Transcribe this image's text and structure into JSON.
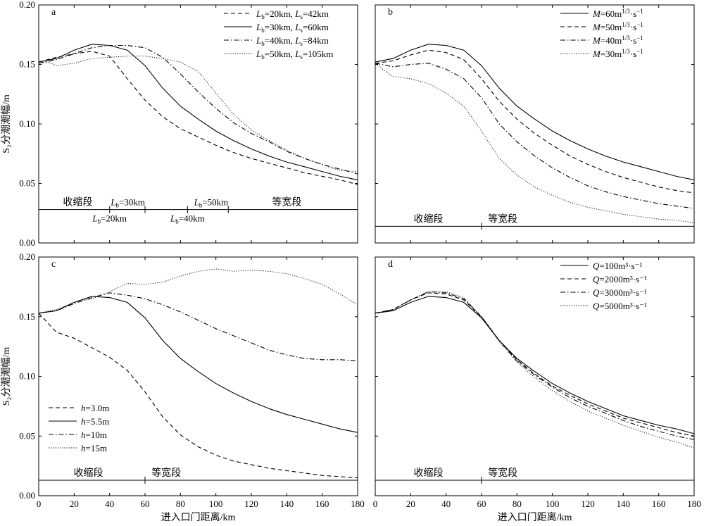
{
  "chart_data": [
    {
      "type": "line",
      "panel_label": "a",
      "xlabel": "",
      "ylabel": "S₂分潮潮幅/m",
      "xlim": [
        0,
        180
      ],
      "ylim": [
        0,
        0.2
      ],
      "x_ticks": [],
      "y_ticks": [
        "0.00",
        "0.05",
        "0.10",
        "0.15",
        "0.20"
      ],
      "legend_position": "top-right",
      "series": [
        {
          "name": "Lb=20km, Ls=42km",
          "label_parts": [
            [
              "Lb",
              "=20km, "
            ],
            [
              "Ls",
              "=42km"
            ]
          ],
          "style": "dashed",
          "x": [
            0,
            5,
            10,
            20,
            30,
            40,
            50,
            60,
            70,
            80,
            90,
            100,
            110,
            120,
            130,
            140,
            150,
            160,
            170,
            180
          ],
          "y": [
            0.152,
            0.154,
            0.156,
            0.159,
            0.161,
            0.157,
            0.138,
            0.12,
            0.106,
            0.096,
            0.089,
            0.082,
            0.076,
            0.071,
            0.067,
            0.063,
            0.059,
            0.056,
            0.053,
            0.049
          ]
        },
        {
          "name": "Lb=30km, Ls=60km",
          "label_parts": [
            [
              "Lb",
              "=30km, "
            ],
            [
              "Ls",
              "=60km"
            ]
          ],
          "style": "solid",
          "x": [
            0,
            10,
            20,
            30,
            40,
            50,
            60,
            70,
            80,
            90,
            100,
            110,
            120,
            130,
            140,
            150,
            160,
            170,
            180
          ],
          "y": [
            0.152,
            0.155,
            0.162,
            0.167,
            0.166,
            0.162,
            0.149,
            0.13,
            0.115,
            0.104,
            0.094,
            0.086,
            0.079,
            0.073,
            0.068,
            0.064,
            0.06,
            0.056,
            0.053
          ]
        },
        {
          "name": "Lb=40km, Ls=84km",
          "label_parts": [
            [
              "Lb",
              "=40km, "
            ],
            [
              "Ls",
              "=84km"
            ]
          ],
          "style": "dashdot",
          "x": [
            0,
            10,
            20,
            30,
            40,
            50,
            60,
            70,
            80,
            90,
            100,
            110,
            120,
            130,
            140,
            150,
            160,
            170,
            180
          ],
          "y": [
            0.151,
            0.154,
            0.159,
            0.164,
            0.166,
            0.166,
            0.164,
            0.156,
            0.142,
            0.127,
            0.113,
            0.101,
            0.092,
            0.085,
            0.077,
            0.071,
            0.066,
            0.062,
            0.058
          ]
        },
        {
          "name": "Lb=50km, Ls=105km",
          "label_parts": [
            [
              "Lb",
              "=50km, "
            ],
            [
              "Ls",
              "=105km"
            ]
          ],
          "style": "dotted",
          "x": [
            0,
            5,
            10,
            20,
            30,
            40,
            50,
            60,
            70,
            80,
            90,
            100,
            110,
            120,
            130,
            140,
            150,
            160,
            165,
            170,
            180
          ],
          "y": [
            0.151,
            0.152,
            0.149,
            0.151,
            0.155,
            0.156,
            0.157,
            0.157,
            0.155,
            0.152,
            0.144,
            0.126,
            0.108,
            0.095,
            0.086,
            0.078,
            0.071,
            0.066,
            0.063,
            0.061,
            0.06
          ]
        }
      ],
      "zones": {
        "y": 0.028,
        "contraction_label": "收缩段",
        "contraction_label_x": 22,
        "equal_width_label": "等宽段",
        "equal_width_label_x": 140,
        "markers": [
          {
            "x": 40,
            "label": "Lb=20km",
            "parts": [
              [
                "Lb",
                "=20km"
              ]
            ],
            "side": "below"
          },
          {
            "x": 60,
            "label": "Lb=30km",
            "parts": [
              [
                "Lb",
                "=30km"
              ]
            ],
            "side": "above"
          },
          {
            "x": 84,
            "label": "Lb=40km",
            "parts": [
              [
                "Lb",
                "=40km"
              ]
            ],
            "side": "below"
          },
          {
            "x": 107,
            "label": "Lb=50km",
            "parts": [
              [
                "Lb",
                "=50km"
              ]
            ],
            "side": "above"
          }
        ]
      }
    },
    {
      "type": "line",
      "panel_label": "b",
      "xlabel": "",
      "ylabel": "",
      "xlim": [
        0,
        180
      ],
      "ylim": [
        0,
        0.2
      ],
      "x_ticks": [],
      "y_ticks": [],
      "legend_position": "top-right",
      "series": [
        {
          "name": "M=60m1/3·s−1",
          "label_parts": [
            [
              "M",
              "=60m"
            ],
            [
              "1/3",
              "·s"
            ],
            [
              "−1",
              ""
            ]
          ],
          "style": "solid",
          "x": [
            0,
            10,
            20,
            30,
            40,
            50,
            60,
            70,
            80,
            90,
            100,
            110,
            120,
            130,
            140,
            150,
            160,
            170,
            180
          ],
          "y": [
            0.152,
            0.155,
            0.162,
            0.167,
            0.166,
            0.162,
            0.149,
            0.13,
            0.115,
            0.104,
            0.094,
            0.086,
            0.079,
            0.073,
            0.068,
            0.064,
            0.06,
            0.056,
            0.053
          ]
        },
        {
          "name": "M=50m1/3·s−1",
          "label_parts": [
            [
              "M",
              "=50m"
            ],
            [
              "1/3",
              "·s"
            ],
            [
              "−1",
              ""
            ]
          ],
          "style": "dashed",
          "x": [
            0,
            10,
            20,
            30,
            40,
            50,
            60,
            70,
            80,
            90,
            100,
            110,
            120,
            130,
            140,
            150,
            160,
            170,
            180
          ],
          "y": [
            0.151,
            0.153,
            0.158,
            0.162,
            0.16,
            0.154,
            0.138,
            0.119,
            0.104,
            0.092,
            0.082,
            0.073,
            0.066,
            0.06,
            0.055,
            0.051,
            0.047,
            0.044,
            0.042
          ]
        },
        {
          "name": "M=40m1/3·s−1",
          "label_parts": [
            [
              "M",
              "=40m"
            ],
            [
              "1/3",
              "·s"
            ],
            [
              "−1",
              ""
            ]
          ],
          "style": "dashdot",
          "x": [
            0,
            10,
            20,
            30,
            40,
            50,
            60,
            70,
            80,
            90,
            100,
            110,
            120,
            130,
            140,
            150,
            160,
            170,
            180
          ],
          "y": [
            0.151,
            0.148,
            0.15,
            0.151,
            0.146,
            0.138,
            0.122,
            0.1,
            0.085,
            0.073,
            0.063,
            0.055,
            0.048,
            0.043,
            0.039,
            0.036,
            0.033,
            0.031,
            0.029
          ]
        },
        {
          "name": "M=30m1/3·s−1",
          "label_parts": [
            [
              "M",
              "=30m"
            ],
            [
              "1/3",
              "·s"
            ],
            [
              "−1",
              ""
            ]
          ],
          "style": "dotted",
          "x": [
            0,
            5,
            10,
            20,
            30,
            40,
            50,
            60,
            70,
            80,
            90,
            100,
            110,
            120,
            130,
            140,
            150,
            160,
            170,
            180
          ],
          "y": [
            0.151,
            0.145,
            0.14,
            0.138,
            0.134,
            0.126,
            0.115,
            0.094,
            0.071,
            0.057,
            0.047,
            0.04,
            0.034,
            0.03,
            0.027,
            0.024,
            0.022,
            0.02,
            0.019,
            0.017
          ]
        }
      ],
      "zones": {
        "y": 0.014,
        "contraction_label": "收缩段",
        "contraction_label_x": 30,
        "equal_width_label": "等宽段",
        "equal_width_label_x": 72,
        "markers": [
          {
            "x": 60,
            "label": "",
            "parts": [],
            "side": "none"
          }
        ]
      }
    },
    {
      "type": "line",
      "panel_label": "c",
      "xlabel": "进入口门距离/km",
      "ylabel": "S₂分潮潮幅/m",
      "xlim": [
        0,
        180
      ],
      "ylim": [
        0,
        0.2
      ],
      "x_ticks": [
        "0",
        "20",
        "40",
        "60",
        "80",
        "100",
        "120",
        "140",
        "160",
        "180"
      ],
      "y_ticks": [
        "0.00",
        "0.05",
        "0.10",
        "0.15",
        "0.20"
      ],
      "legend_position": "bottom-left",
      "series": [
        {
          "name": "h=3.0m",
          "label_parts": [
            [
              "h",
              "=3.0m"
            ]
          ],
          "style": "dashed",
          "x": [
            0,
            10,
            20,
            30,
            40,
            50,
            60,
            70,
            80,
            90,
            100,
            110,
            120,
            130,
            140,
            150,
            160,
            170,
            180
          ],
          "y": [
            0.153,
            0.137,
            0.132,
            0.124,
            0.116,
            0.105,
            0.087,
            0.066,
            0.051,
            0.041,
            0.034,
            0.029,
            0.026,
            0.023,
            0.021,
            0.019,
            0.017,
            0.016,
            0.015
          ]
        },
        {
          "name": "h=5.5m",
          "label_parts": [
            [
              "h",
              "=5.5m"
            ]
          ],
          "style": "solid",
          "x": [
            0,
            10,
            20,
            30,
            40,
            50,
            60,
            70,
            80,
            90,
            100,
            110,
            120,
            130,
            140,
            150,
            160,
            170,
            180
          ],
          "y": [
            0.153,
            0.155,
            0.162,
            0.167,
            0.166,
            0.162,
            0.149,
            0.13,
            0.115,
            0.104,
            0.094,
            0.086,
            0.079,
            0.073,
            0.068,
            0.064,
            0.06,
            0.056,
            0.053
          ]
        },
        {
          "name": "h=10m",
          "label_parts": [
            [
              "h",
              "=10m"
            ]
          ],
          "style": "dashdot",
          "x": [
            0,
            10,
            20,
            30,
            40,
            50,
            60,
            70,
            80,
            90,
            100,
            110,
            120,
            130,
            140,
            150,
            160,
            170,
            180
          ],
          "y": [
            0.153,
            0.155,
            0.161,
            0.166,
            0.17,
            0.168,
            0.165,
            0.16,
            0.154,
            0.147,
            0.14,
            0.134,
            0.128,
            0.122,
            0.118,
            0.115,
            0.114,
            0.114,
            0.113
          ]
        },
        {
          "name": "h=15m",
          "label_parts": [
            [
              "h",
              "=15m"
            ]
          ],
          "style": "dotted",
          "x": [
            0,
            10,
            20,
            30,
            40,
            50,
            60,
            70,
            80,
            90,
            100,
            110,
            120,
            130,
            140,
            150,
            160,
            170,
            180
          ],
          "y": [
            0.153,
            0.156,
            0.162,
            0.165,
            0.171,
            0.178,
            0.177,
            0.179,
            0.184,
            0.188,
            0.19,
            0.188,
            0.189,
            0.188,
            0.186,
            0.182,
            0.177,
            0.169,
            0.16
          ]
        }
      ],
      "zones": {
        "y": 0.013,
        "contraction_label": "收缩段",
        "contraction_label_x": 28,
        "equal_width_label": "等宽段",
        "equal_width_label_x": 72,
        "markers": [
          {
            "x": 60,
            "label": "",
            "parts": [],
            "side": "none"
          }
        ]
      }
    },
    {
      "type": "line",
      "panel_label": "d",
      "xlabel": "进入口门距离/km",
      "ylabel": "",
      "xlim": [
        0,
        180
      ],
      "ylim": [
        0,
        0.2
      ],
      "x_ticks": [
        "0",
        "20",
        "40",
        "60",
        "80",
        "100",
        "120",
        "140",
        "160",
        "180"
      ],
      "y_ticks": [],
      "legend_position": "top-right",
      "series": [
        {
          "name": "Q=100m³·s⁻¹",
          "label_parts": [
            [
              "Q",
              "=100m³·s⁻¹"
            ]
          ],
          "style": "solid",
          "x": [
            0,
            10,
            20,
            30,
            40,
            50,
            60,
            70,
            80,
            90,
            100,
            110,
            120,
            130,
            140,
            150,
            160,
            170,
            180
          ],
          "y": [
            0.153,
            0.155,
            0.162,
            0.167,
            0.166,
            0.162,
            0.149,
            0.13,
            0.115,
            0.104,
            0.094,
            0.086,
            0.079,
            0.073,
            0.067,
            0.063,
            0.059,
            0.056,
            0.052
          ]
        },
        {
          "name": "Q=2000m³·s⁻¹",
          "label_parts": [
            [
              "Q",
              "=2000m³·s⁻¹"
            ]
          ],
          "style": "dashed",
          "x": [
            0,
            10,
            20,
            30,
            40,
            50,
            60,
            70,
            80,
            90,
            100,
            110,
            120,
            130,
            140,
            150,
            160,
            170,
            180
          ],
          "y": [
            0.153,
            0.156,
            0.164,
            0.17,
            0.169,
            0.164,
            0.15,
            0.13,
            0.114,
            0.102,
            0.092,
            0.084,
            0.077,
            0.071,
            0.065,
            0.061,
            0.057,
            0.053,
            0.05
          ]
        },
        {
          "name": "Q=3000m³·s⁻¹",
          "label_parts": [
            [
              "Q",
              "=3000m³·s⁻¹"
            ]
          ],
          "style": "dashdot",
          "x": [
            0,
            10,
            20,
            30,
            40,
            50,
            60,
            70,
            80,
            90,
            100,
            110,
            120,
            130,
            140,
            150,
            160,
            170,
            180
          ],
          "y": [
            0.153,
            0.156,
            0.164,
            0.171,
            0.17,
            0.165,
            0.15,
            0.13,
            0.113,
            0.101,
            0.091,
            0.082,
            0.075,
            0.069,
            0.063,
            0.058,
            0.054,
            0.05,
            0.047
          ]
        },
        {
          "name": "Q=5000m³·s⁻¹",
          "label_parts": [
            [
              "Q",
              "=5000m³·s⁻¹"
            ]
          ],
          "style": "dotted",
          "x": [
            0,
            10,
            20,
            30,
            40,
            50,
            60,
            70,
            80,
            90,
            100,
            110,
            120,
            130,
            140,
            150,
            160,
            170,
            180
          ],
          "y": [
            0.153,
            0.156,
            0.164,
            0.171,
            0.171,
            0.166,
            0.15,
            0.129,
            0.112,
            0.099,
            0.088,
            0.079,
            0.071,
            0.065,
            0.059,
            0.054,
            0.049,
            0.045,
            0.04
          ]
        }
      ],
      "zones": {
        "y": 0.013,
        "contraction_label": "收缩段",
        "contraction_label_x": 30,
        "equal_width_label": "等宽段",
        "equal_width_label_x": 72,
        "markers": [
          {
            "x": 60,
            "label": "",
            "parts": [],
            "side": "none"
          }
        ]
      }
    }
  ]
}
